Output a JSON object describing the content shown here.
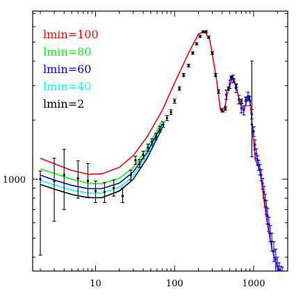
{
  "chart_data": {
    "type": "line",
    "title": "",
    "xlabel": "",
    "ylabel": "",
    "xscale": "log",
    "yscale": "log",
    "xlim": [
      1.6,
      2700
    ],
    "ylim": [
      340,
      7200
    ],
    "x_ticks": [
      {
        "value": 10,
        "label": "10"
      },
      {
        "value": 100,
        "label": "100"
      },
      {
        "value": 1000,
        "label": "1000"
      }
    ],
    "y_ticks": [
      {
        "value": 1000,
        "label": "1000"
      }
    ],
    "legend_placement": "top-left",
    "series": [
      {
        "name": "lmin=100",
        "color": "#ff0000",
        "points": [
          [
            2,
            1280
          ],
          [
            3,
            1200
          ],
          [
            5,
            1110
          ],
          [
            8,
            1060
          ],
          [
            12,
            1065
          ],
          [
            20,
            1150
          ],
          [
            30,
            1320
          ],
          [
            45,
            1650
          ],
          [
            70,
            2250
          ],
          [
            100,
            3100
          ],
          [
            150,
            4400
          ],
          [
            200,
            5500
          ],
          [
            240,
            5700
          ],
          [
            280,
            5100
          ],
          [
            340,
            3200
          ],
          [
            380,
            2250
          ],
          [
            420,
            2200
          ],
          [
            480,
            2900
          ],
          [
            540,
            3300
          ],
          [
            600,
            3000
          ],
          [
            680,
            2400
          ],
          [
            760,
            2250
          ],
          [
            840,
            2650
          ],
          [
            900,
            2550
          ],
          [
            980,
            1700
          ],
          [
            1050,
            1250
          ],
          [
            1100,
            1200
          ],
          [
            1200,
            1100
          ],
          [
            1350,
            780
          ],
          [
            1500,
            580
          ],
          [
            1700,
            440
          ],
          [
            2000,
            360
          ],
          [
            2400,
            320
          ]
        ]
      },
      {
        "name": "lmin=80",
        "color": "#00ff00",
        "points": [
          [
            2,
            1130
          ],
          [
            3,
            1070
          ],
          [
            5,
            1000
          ],
          [
            8,
            955
          ],
          [
            12,
            950
          ],
          [
            20,
            1010
          ],
          [
            30,
            1150
          ],
          [
            45,
            1440
          ],
          [
            70,
            2000
          ]
        ]
      },
      {
        "name": "lmin=60",
        "color": "#0000ff",
        "points": [
          [
            2,
            1050
          ],
          [
            3,
            990
          ],
          [
            5,
            930
          ],
          [
            8,
            895
          ],
          [
            12,
            895
          ],
          [
            20,
            955
          ],
          [
            30,
            1090
          ],
          [
            45,
            1370
          ],
          [
            70,
            1920
          ]
        ]
      },
      {
        "name": "lmin=40",
        "color": "#00ffff",
        "points": [
          [
            2,
            990
          ],
          [
            3,
            935
          ],
          [
            5,
            880
          ],
          [
            8,
            850
          ],
          [
            12,
            850
          ],
          [
            20,
            910
          ],
          [
            30,
            1040
          ],
          [
            45,
            1320
          ],
          [
            70,
            1870
          ]
        ]
      },
      {
        "name": "lmin=2",
        "color": "#000000",
        "points": [
          [
            2,
            940
          ],
          [
            3,
            890
          ],
          [
            5,
            835
          ],
          [
            8,
            805
          ],
          [
            12,
            805
          ],
          [
            20,
            870
          ],
          [
            30,
            1000
          ],
          [
            45,
            1280
          ],
          [
            70,
            1830
          ]
        ]
      }
    ],
    "error_bars": [
      {
        "color": "#000000",
        "points": [
          [
            2,
            1000,
            410,
            1100
          ],
          [
            3,
            980,
            610,
            1280
          ],
          [
            4,
            1050,
            700,
            1420
          ],
          [
            6,
            1010,
            800,
            1240
          ],
          [
            8,
            980,
            810,
            1200
          ],
          [
            10,
            870,
            760,
            980
          ],
          [
            13,
            860,
            760,
            960
          ],
          [
            17,
            900,
            820,
            990
          ],
          [
            22,
            820,
            760,
            900
          ],
          [
            28,
            1050,
            990,
            1110
          ],
          [
            32,
            1250,
            1190,
            1310
          ],
          [
            36,
            1200,
            1150,
            1260
          ],
          [
            40,
            1330,
            1270,
            1390
          ],
          [
            46,
            1450,
            1390,
            1510
          ],
          [
            52,
            1550,
            1490,
            1610
          ],
          [
            58,
            1650,
            1590,
            1710
          ],
          [
            65,
            1800,
            1740,
            1860
          ],
          [
            72,
            1900,
            1840,
            1960
          ],
          [
            80,
            2050,
            1990,
            2110
          ],
          [
            90,
            2200,
            2140,
            2260
          ],
          [
            100,
            2500,
            2440,
            2560
          ],
          [
            115,
            2900,
            2840,
            2960
          ],
          [
            130,
            3400,
            3340,
            3460
          ],
          [
            150,
            3800,
            3740,
            3860
          ],
          [
            170,
            4400,
            4340,
            4460
          ],
          [
            190,
            4900,
            4840,
            4960
          ],
          [
            210,
            5350,
            5280,
            5420
          ],
          [
            230,
            5650,
            5580,
            5720
          ],
          [
            250,
            5650,
            5580,
            5720
          ],
          [
            270,
            5300,
            5230,
            5370
          ],
          [
            300,
            4400,
            4330,
            4470
          ],
          [
            330,
            3400,
            3340,
            3460
          ],
          [
            360,
            2800,
            2740,
            2860
          ],
          [
            400,
            2250,
            2200,
            2300
          ],
          [
            440,
            2300,
            2250,
            2350
          ],
          [
            480,
            2900,
            2840,
            2960
          ],
          [
            520,
            3300,
            3240,
            3360
          ],
          [
            560,
            3200,
            3140,
            3260
          ],
          [
            600,
            3000,
            2940,
            3060
          ],
          [
            700,
            2500,
            2440,
            2560
          ],
          [
            800,
            2550,
            2490,
            2610
          ],
          [
            880,
            2600,
            2540,
            2660
          ],
          [
            950,
            1900,
            1300,
            4000
          ],
          [
            1000,
            1750,
            1650,
            1850
          ]
        ]
      },
      {
        "color": "#0000ff",
        "points": [
          [
            450,
            2700,
            2550,
            2850
          ],
          [
            500,
            3050,
            2900,
            3200
          ],
          [
            550,
            3250,
            3100,
            3400
          ],
          [
            600,
            2900,
            2760,
            3040
          ],
          [
            650,
            2550,
            2420,
            2680
          ],
          [
            700,
            2300,
            2180,
            2420
          ],
          [
            750,
            2250,
            2130,
            2370
          ],
          [
            800,
            2500,
            2370,
            2630
          ],
          [
            850,
            2650,
            2520,
            2780
          ],
          [
            900,
            2500,
            2370,
            2630
          ],
          [
            950,
            2150,
            2030,
            2270
          ],
          [
            1000,
            1750,
            1650,
            1850
          ],
          [
            1040,
            1500,
            1410,
            1590
          ],
          [
            1080,
            1350,
            1270,
            1430
          ],
          [
            1120,
            1250,
            1180,
            1320
          ],
          [
            1160,
            1180,
            1110,
            1250
          ],
          [
            1200,
            1120,
            1050,
            1190
          ],
          [
            1250,
            1050,
            980,
            1120
          ],
          [
            1300,
            950,
            890,
            1010
          ],
          [
            1350,
            860,
            800,
            920
          ],
          [
            1400,
            780,
            720,
            840
          ],
          [
            1450,
            720,
            660,
            780
          ],
          [
            1500,
            650,
            590,
            710
          ],
          [
            1560,
            590,
            540,
            640
          ],
          [
            1620,
            530,
            480,
            580
          ],
          [
            1700,
            480,
            430,
            530
          ],
          [
            1800,
            430,
            380,
            480
          ],
          [
            1900,
            390,
            340,
            440
          ],
          [
            2000,
            360,
            320,
            400
          ],
          [
            2100,
            345,
            320,
            375
          ],
          [
            2200,
            338,
            320,
            360
          ],
          [
            2300,
            335,
            320,
            355
          ]
        ]
      }
    ]
  }
}
